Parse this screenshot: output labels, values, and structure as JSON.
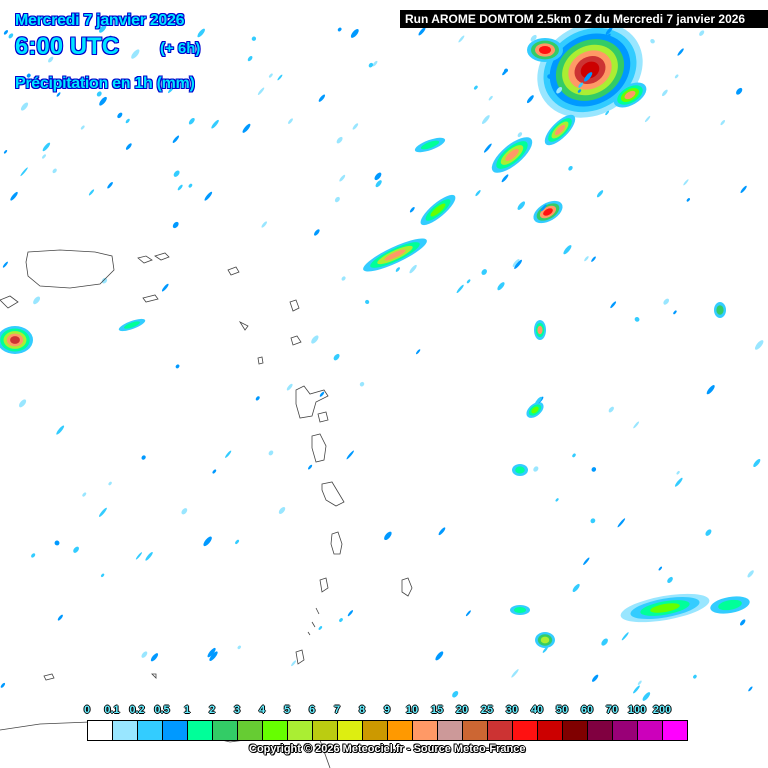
{
  "header": {
    "date": "Mercredi 7 janvier 2026",
    "time": "6:00 UTC",
    "lead": "(+ 6h)",
    "variable": "Précipitation en 1h (mm)"
  },
  "run_banner": "Run AROME DOMTOM 2.5km 0 Z du Mercredi 7 janvier 2026",
  "legend": {
    "labels": [
      "0",
      "0.1",
      "0.2",
      "0.5",
      "1",
      "2",
      "3",
      "4",
      "5",
      "6",
      "7",
      "8",
      "9",
      "10",
      "15",
      "20",
      "25",
      "30",
      "40",
      "50",
      "60",
      "70",
      "100",
      "200"
    ],
    "colors": [
      "#ffffff",
      "#99e6ff",
      "#33ccff",
      "#0099ff",
      "#00ff99",
      "#33cc66",
      "#66cc33",
      "#66ff00",
      "#aaee33",
      "#bbcc11",
      "#ddee11",
      "#cc9900",
      "#ff9900",
      "#ff9966",
      "#cc9999",
      "#cc6633",
      "#cc3333",
      "#ff1111",
      "#cc0000",
      "#800000",
      "#800040",
      "#990077",
      "#cc00bb",
      "#ff00ff"
    ]
  },
  "copyright": "Copyright © 2026 Meteociel.fr - Source Meteo-France"
}
